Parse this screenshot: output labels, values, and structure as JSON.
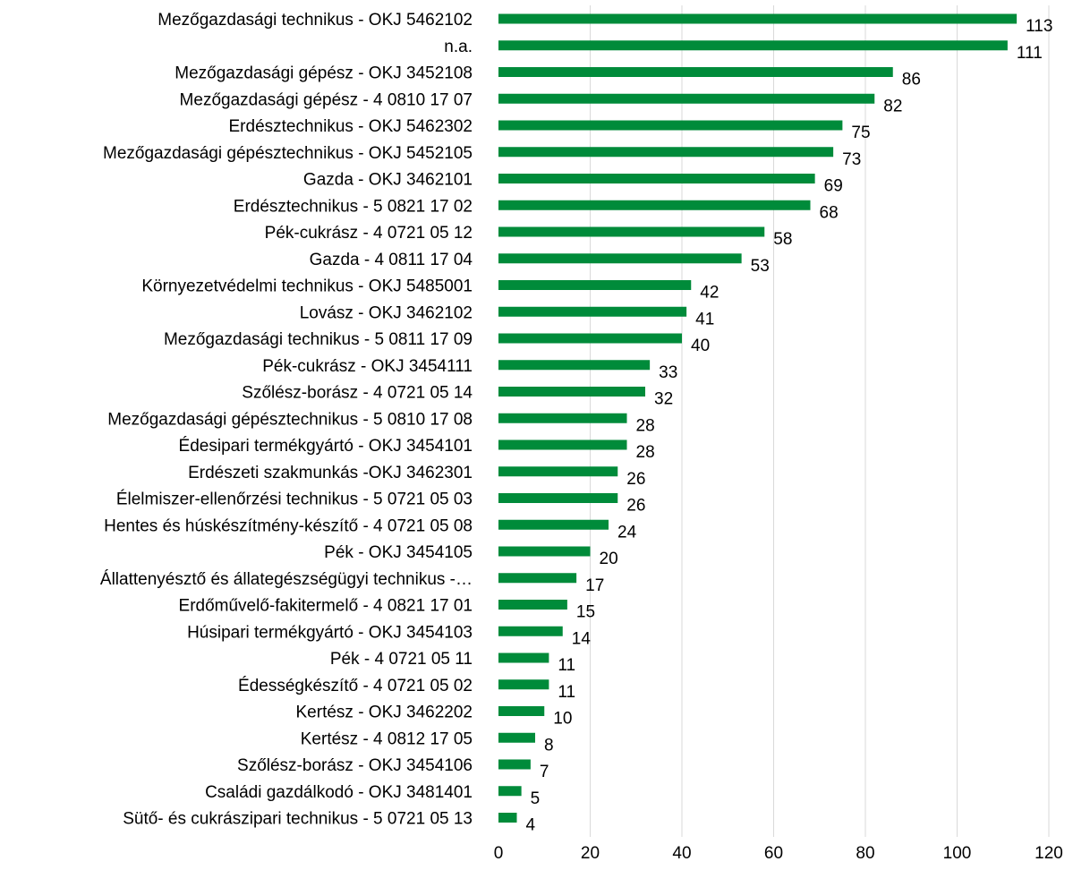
{
  "chart_data": {
    "type": "bar",
    "orientation": "horizontal",
    "categories": [
      "Mezőgazdasági technikus - OKJ 5462102",
      "n.a.",
      "Mezőgazdasági gépész - OKJ 3452108",
      "Mezőgazdasági gépész - 4 0810 17 07",
      "Erdésztechnikus - OKJ 5462302",
      "Mezőgazdasági gépésztechnikus - OKJ 5452105",
      "Gazda - OKJ 3462101",
      "Erdésztechnikus - 5 0821 17 02",
      "Pék-cukrász - 4 0721 05 12",
      "Gazda - 4 0811 17 04",
      "Környezetvédelmi technikus - OKJ 5485001",
      "Lovász - OKJ 3462102",
      "Mezőgazdasági technikus - 5 0811 17 09",
      "Pék-cukrász - OKJ 3454111",
      "Szőlész-borász - 4 0721 05 14",
      "Mezőgazdasági gépésztechnikus - 5 0810 17 08",
      "Édesipari termékgyártó - OKJ 3454101",
      "Erdészeti szakmunkás -OKJ  3462301",
      "Élelmiszer-ellenőrzési technikus - 5 0721 05 03",
      "Hentes és húskészítmény-készítő - 4 0721 05 08",
      "Pék - OKJ 3454105",
      "Állattenyésztő és állategészségügyi technikus -…",
      "Erdőművelő-fakitermelő - 4 0821 17 01",
      "Húsipari termékgyártó - OKJ 3454103",
      "Pék - 4 0721 05 11",
      "Édességkészítő - 4 0721 05 02",
      "Kertész - OKJ 3462202",
      "Kertész - 4 0812 17 05",
      "Szőlész-borász - OKJ 3454106",
      "Családi gazdálkodó - OKJ 3481401",
      "Sütő- és cukrászipari technikus - 5 0721 05 13"
    ],
    "values": [
      113,
      111,
      86,
      82,
      75,
      73,
      69,
      68,
      58,
      53,
      42,
      41,
      40,
      33,
      32,
      28,
      28,
      26,
      26,
      24,
      20,
      17,
      15,
      14,
      11,
      11,
      10,
      8,
      7,
      5,
      4
    ],
    "xlim": [
      0,
      120
    ],
    "xticks": [
      "0",
      "20",
      "40",
      "60",
      "80",
      "100",
      "120"
    ],
    "grid": "vertical",
    "bar_color": "#008b3a",
    "gridline_color": "#d9d9d9",
    "data_labels": true,
    "legend": "none"
  }
}
